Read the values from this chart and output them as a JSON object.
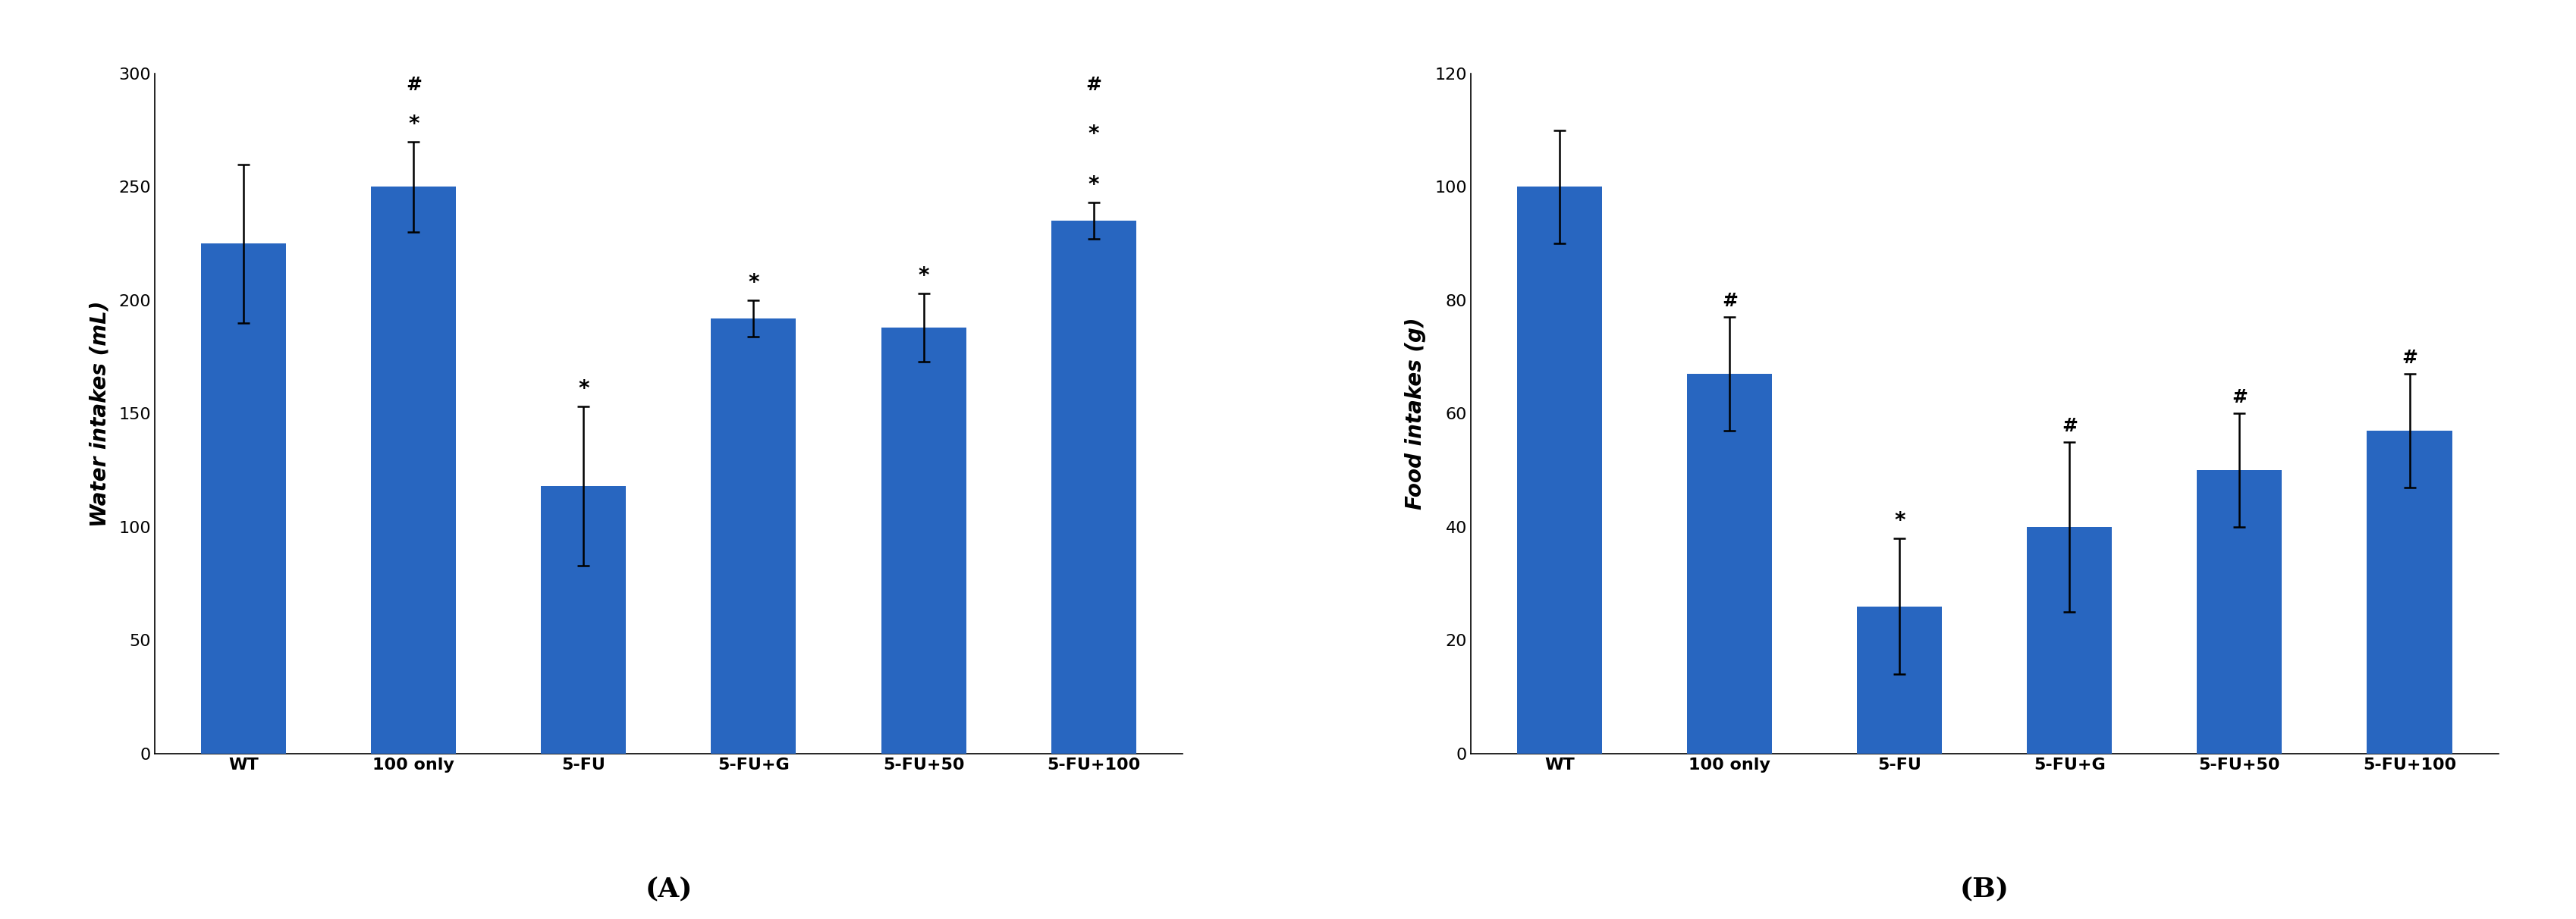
{
  "chart_A": {
    "title": "(A)",
    "ylabel": "Water intakes (mL)",
    "categories": [
      "WT",
      "100 only",
      "5-FU",
      "5-FU+G",
      "5-FU+50",
      "5-FU+100"
    ],
    "values": [
      225,
      250,
      118,
      192,
      188,
      235
    ],
    "errors": [
      35,
      20,
      35,
      8,
      15,
      8
    ],
    "ylim": [
      0,
      300
    ],
    "yticks": [
      0,
      50,
      100,
      150,
      200,
      250,
      300
    ],
    "bar_color": "#2866C0",
    "annotations": [
      {
        "symbol": "",
        "x": 0
      },
      {
        "symbol": "#*",
        "x": 1
      },
      {
        "symbol": "*",
        "x": 2
      },
      {
        "symbol": "*",
        "x": 3
      },
      {
        "symbol": "*",
        "x": 4
      },
      {
        "symbol": "#**",
        "x": 5
      }
    ]
  },
  "chart_B": {
    "title": "(B)",
    "ylabel": "Food intakes (g)",
    "categories": [
      "WT",
      "100 only",
      "5-FU",
      "5-FU+G",
      "5-FU+50",
      "5-FU+100"
    ],
    "values": [
      100,
      67,
      26,
      40,
      50,
      57
    ],
    "errors": [
      10,
      10,
      12,
      15,
      10,
      10
    ],
    "ylim": [
      0,
      120
    ],
    "yticks": [
      0,
      20,
      40,
      60,
      80,
      100,
      120
    ],
    "bar_color": "#2866C0",
    "annotations": [
      {
        "symbol": "",
        "x": 0
      },
      {
        "symbol": "#",
        "x": 1
      },
      {
        "symbol": "*",
        "x": 2
      },
      {
        "symbol": "#",
        "x": 3
      },
      {
        "symbol": "#",
        "x": 4
      },
      {
        "symbol": "#",
        "x": 5
      }
    ]
  }
}
